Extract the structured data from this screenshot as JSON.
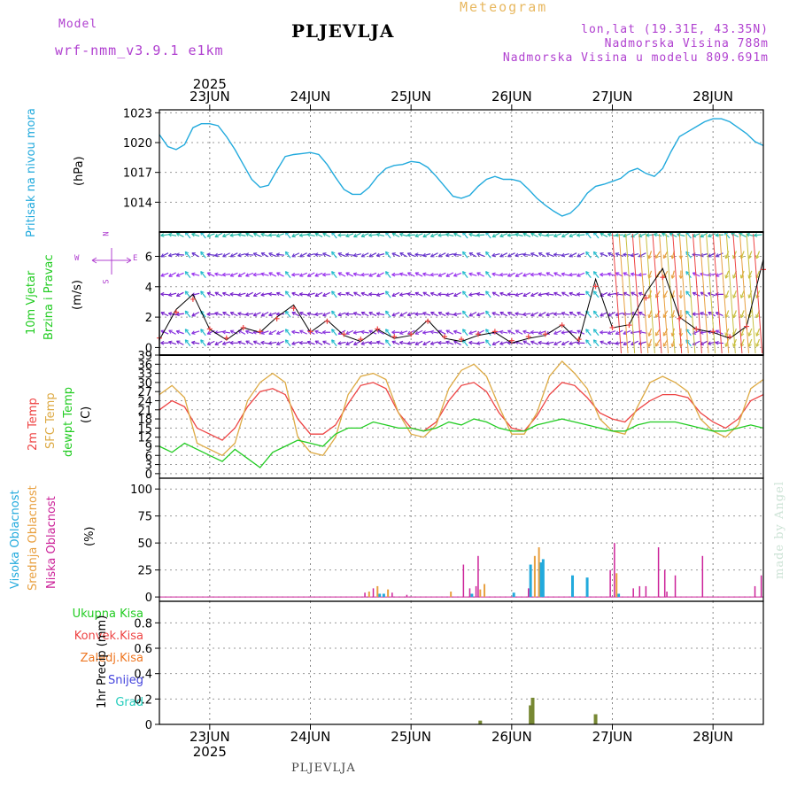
{
  "header": {
    "model_label": "Model",
    "model_name": "wrf-nmm_v3.9.1 e1km",
    "title": "PLJEVLJA",
    "meteogram": "Meteogram",
    "lonlat": "lon,lat (19.31E, 43.35N)",
    "altitude": "Nadmorska Visina 788m",
    "model_altitude": "Nadmorska Visina u modelu 809.691m"
  },
  "footer": {
    "station": "PLJEVLJA",
    "credit": "made by Angel"
  },
  "colors": {
    "pressure": "#22aadd",
    "temp2m": "#ee4444",
    "sfc": "#ddaa44",
    "dewpt": "#22cc22",
    "high_cloud": "#22aadd",
    "mid_cloud": "#e8a040",
    "low_cloud": "#cc2299",
    "total_precip": "#22cc22",
    "conv_precip": "#ee4444",
    "frz_precip": "#ee7722",
    "snow": "#4444dd",
    "hail": "#22ccbb"
  },
  "chart_data": [
    {
      "type": "line",
      "panel": "pressure",
      "ylabel_1": "Pritisak na nivou mora",
      "ylabel_2": "(hPa)",
      "year": "2025",
      "x_labels": [
        "23JUN",
        "24JUN",
        "25JUN",
        "26JUN",
        "27JUN",
        "28JUN"
      ],
      "yticks": [
        "1014",
        "1017",
        "1020",
        "1023"
      ],
      "ylim": [
        1011,
        1023.3
      ],
      "x_range_hours": [
        0,
        144
      ],
      "x_label_hours": [
        12,
        36,
        60,
        84,
        108,
        132
      ],
      "x": [
        0,
        2,
        4,
        6,
        8,
        10,
        12,
        14,
        16,
        18,
        20,
        22,
        24,
        26,
        28,
        30,
        32,
        34,
        36,
        38,
        40,
        42,
        44,
        46,
        48,
        50,
        52,
        54,
        56,
        58,
        60,
        62,
        64,
        66,
        68,
        70,
        72,
        74,
        76,
        78,
        80,
        82,
        84,
        86,
        88,
        90,
        92,
        94,
        96,
        98,
        100,
        102,
        104,
        106,
        108,
        110,
        112,
        114,
        116,
        118,
        120,
        122,
        124,
        126,
        128,
        130,
        132,
        134,
        136,
        138,
        140,
        142,
        144
      ],
      "series": [
        {
          "name": "",
          "values": [
            1020.8,
            1019.6,
            1019.3,
            1019.8,
            1021.5,
            1021.9,
            1021.9,
            1021.7,
            1020.6,
            1019.3,
            1017.8,
            1016.3,
            1015.5,
            1015.7,
            1017.2,
            1018.6,
            1018.8,
            1018.9,
            1019.0,
            1018.8,
            1017.8,
            1016.5,
            1015.3,
            1014.8,
            1014.8,
            1015.5,
            1016.6,
            1017.4,
            1017.7,
            1017.8,
            1018.1,
            1018.0,
            1017.5,
            1016.6,
            1015.6,
            1014.6,
            1014.4,
            1014.7,
            1015.6,
            1016.3,
            1016.6,
            1016.3,
            1016.3,
            1016.1,
            1015.3,
            1014.4,
            1013.7,
            1013.1,
            1012.6,
            1012.9,
            1013.7,
            1014.9,
            1015.6,
            1015.8,
            1016.1,
            1016.4,
            1017.1,
            1017.4,
            1016.9,
            1016.6,
            1017.4,
            1019.1,
            1020.6,
            1021.1,
            1021.6,
            1022.1,
            1022.4,
            1022.4,
            1022.1,
            1021.5,
            1020.9,
            1020.1,
            1019.7
          ]
        }
      ]
    },
    {
      "type": "scatter",
      "panel": "wind",
      "ylabel_1": "10m Vjetar",
      "ylabel_2": "Brzina i Pravac",
      "ylabel_3": "(m/s)",
      "compass_w": "W",
      "compass_n": "N",
      "compass_e": "E",
      "compass_s": "S",
      "yticks": [
        "0",
        "2",
        "4",
        "6"
      ],
      "ylim": [
        -0.5,
        7.6
      ],
      "arrow_rows_ms": [
        0.3,
        1.0,
        2.2,
        3.5,
        4.8,
        6.1,
        7.4
      ],
      "speed_x": [
        0,
        4,
        8,
        12,
        16,
        20,
        24,
        28,
        32,
        36,
        40,
        44,
        48,
        52,
        56,
        60,
        64,
        68,
        72,
        76,
        80,
        84,
        88,
        92,
        96,
        100,
        104,
        108,
        112,
        116,
        120,
        124,
        128,
        132,
        136,
        140,
        144
      ],
      "speed": [
        0.5,
        2.5,
        3.5,
        1.2,
        0.5,
        1.3,
        1.0,
        2.0,
        2.8,
        1.0,
        1.8,
        0.8,
        0.4,
        1.2,
        0.6,
        0.8,
        1.8,
        0.6,
        0.4,
        0.8,
        1.0,
        0.3,
        0.6,
        0.8,
        1.5,
        0.4,
        4.5,
        1.3,
        1.5,
        3.6,
        5.2,
        2.0,
        1.2,
        1.0,
        0.6,
        1.4,
        5.8
      ]
    },
    {
      "type": "line",
      "panel": "temperature",
      "ylabel_1": "2m Temp",
      "ylabel_2": "SFC Temp",
      "ylabel_3": "dewpt Temp",
      "ylabel_4": "(C)",
      "yticks": [
        "0",
        "3",
        "6",
        "9",
        "12",
        "15",
        "18",
        "21",
        "24",
        "27",
        "30",
        "33",
        "36",
        "39"
      ],
      "ylim": [
        -1.5,
        39
      ],
      "x": [
        0,
        3,
        6,
        9,
        12,
        15,
        18,
        21,
        24,
        27,
        30,
        33,
        36,
        39,
        42,
        45,
        48,
        51,
        54,
        57,
        60,
        63,
        66,
        69,
        72,
        75,
        78,
        81,
        84,
        87,
        90,
        93,
        96,
        99,
        102,
        105,
        108,
        111,
        114,
        117,
        120,
        123,
        126,
        129,
        132,
        135,
        138,
        141,
        144
      ],
      "series": [
        {
          "name": "",
          "values": [
            21,
            24,
            22,
            15,
            13,
            11,
            15,
            22,
            27,
            28,
            26,
            18,
            13,
            13,
            16,
            23,
            29,
            30,
            28,
            20,
            15,
            14,
            17,
            24,
            29,
            30,
            27,
            20,
            15,
            14,
            19,
            26,
            30,
            29,
            25,
            20,
            18,
            17,
            21,
            24,
            26,
            26,
            25,
            20,
            17,
            15,
            18,
            24,
            26
          ]
        },
        {
          "name": "",
          "values": [
            26,
            29,
            25,
            10,
            8,
            6,
            10,
            24,
            30,
            33,
            30,
            12,
            7,
            6,
            12,
            26,
            32,
            33,
            31,
            20,
            13,
            12,
            16,
            28,
            34,
            36,
            32,
            22,
            13,
            13,
            20,
            32,
            37,
            33,
            28,
            18,
            14,
            13,
            22,
            30,
            32,
            30,
            27,
            18,
            14,
            12,
            16,
            28,
            31
          ]
        },
        {
          "name": "",
          "values": [
            9,
            7,
            10,
            8,
            6,
            4,
            8,
            5,
            2,
            7,
            9,
            11,
            10,
            9,
            13,
            15,
            15,
            17,
            16,
            15,
            15,
            14,
            15,
            17,
            16,
            18,
            17,
            15,
            14,
            14,
            16,
            17,
            18,
            17,
            16,
            15,
            14,
            14,
            16,
            17,
            17,
            17,
            16,
            15,
            14,
            14,
            15,
            16,
            15
          ]
        }
      ]
    },
    {
      "type": "bar",
      "panel": "clouds",
      "ylabel_1": "Visoka Oblacnost",
      "ylabel_2": "Srednja Oblacnost",
      "ylabel_3": "Niska Oblacnost",
      "ylabel_4": "(%)",
      "yticks": [
        "0",
        "25",
        "50",
        "75",
        "100"
      ],
      "ylim": [
        -4,
        110
      ],
      "series": [
        {
          "name": "high",
          "hours": [
            52.5,
            53.5,
            74.5,
            84.5,
            88.5,
            91.0,
            91.5,
            98.5,
            102.0,
            109.5
          ],
          "values": [
            3,
            3,
            3,
            4,
            30,
            32,
            35,
            20,
            18,
            3
          ]
        },
        {
          "name": "mid",
          "hours": [
            50.0,
            52.0,
            54.5,
            69.5,
            76.5,
            77.5,
            89.5,
            90.5,
            109.0
          ],
          "values": [
            5,
            10,
            7,
            5,
            7,
            12,
            38,
            46,
            22
          ]
        },
        {
          "name": "low",
          "hours": [
            49.0,
            51.0,
            55.5,
            59.0,
            72.5,
            74.0,
            75.5,
            76.0,
            88.0,
            107.5,
            108.5,
            113.0,
            114.5,
            116.0,
            119.0,
            120.5,
            121.0,
            123.0,
            129.5,
            142.0,
            143.5
          ],
          "values": [
            4,
            8,
            4,
            2,
            30,
            8,
            10,
            38,
            8,
            25,
            50,
            8,
            10,
            10,
            46,
            25,
            5,
            20,
            38,
            10,
            20
          ]
        }
      ]
    },
    {
      "type": "bar",
      "panel": "precip",
      "legend_1": "Ukupna Kisa",
      "legend_2": "Konvek.Kisa",
      "legend_3": "Zaledj.Kisa",
      "legend_4": "Snijeg",
      "legend_5": "Grad",
      "ylabel": "1hr Precip (mm)",
      "yticks": [
        "0",
        "0.2",
        "0.4",
        "0.6",
        "0.8"
      ],
      "ylim": [
        0,
        0.97
      ],
      "series": [
        {
          "name": "total",
          "hours": [
            76.5,
            88.5,
            89.0,
            104.0
          ],
          "values": [
            0.03,
            0.15,
            0.21,
            0.08
          ]
        }
      ]
    }
  ]
}
